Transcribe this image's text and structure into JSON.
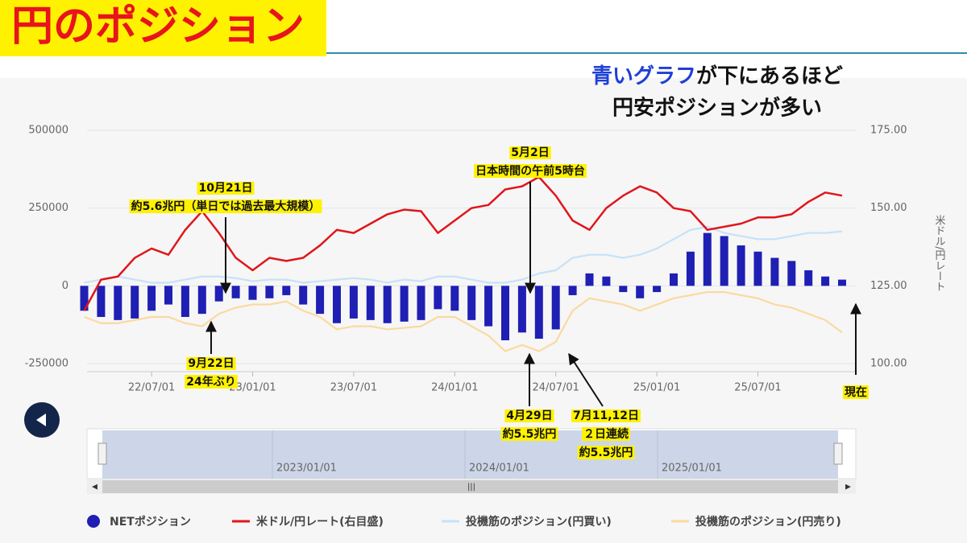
{
  "header": {
    "title": "円のポジション"
  },
  "subtitle": {
    "line1": [
      "青いグラフ",
      "が下にあるほど"
    ],
    "line2": "円安ポジションが多い"
  },
  "chart_data": {
    "type": "bar",
    "categories": [
      "22/03/01",
      "22/04/01",
      "22/05/01",
      "22/06/01",
      "22/07/01",
      "22/08/01",
      "22/09/01",
      "22/10/01",
      "22/11/01",
      "22/12/01",
      "23/01/01",
      "23/02/01",
      "23/03/01",
      "23/04/01",
      "23/05/01",
      "23/06/01",
      "23/07/01",
      "23/08/01",
      "23/09/01",
      "23/10/01",
      "23/11/01",
      "23/12/01",
      "24/01/01",
      "24/02/01",
      "24/03/01",
      "24/04/01",
      "24/05/01",
      "24/06/01",
      "24/07/01",
      "24/08/01",
      "24/09/01",
      "24/10/01",
      "24/11/01",
      "24/12/01",
      "25/01/01",
      "25/02/01",
      "25/03/01",
      "25/04/01",
      "25/05/01",
      "25/06/01",
      "25/07/01",
      "25/08/01",
      "25/09/01",
      "25/10/01",
      "25/11/01",
      "25/12/01"
    ],
    "series": [
      {
        "name": "NETポジション",
        "type": "bar",
        "color": "#1f1fb4",
        "values": [
          -80000,
          -100000,
          -110000,
          -105000,
          -80000,
          -60000,
          -100000,
          -90000,
          -50000,
          -40000,
          -45000,
          -40000,
          -30000,
          -60000,
          -90000,
          -120000,
          -105000,
          -110000,
          -120000,
          -115000,
          -110000,
          -75000,
          -80000,
          -110000,
          -130000,
          -175000,
          -150000,
          -170000,
          -140000,
          -30000,
          40000,
          30000,
          -20000,
          -40000,
          -20000,
          40000,
          110000,
          170000,
          160000,
          130000,
          110000,
          90000,
          80000,
          50000,
          30000,
          20000
        ]
      },
      {
        "name": "米ドル/円レート(右目盛)",
        "type": "line",
        "axis": "y2",
        "color": "#e0161b",
        "values": [
          117,
          127,
          128,
          134,
          137,
          135,
          143,
          149,
          142,
          134,
          130,
          134,
          133,
          134,
          138,
          143,
          142,
          145,
          148,
          149.5,
          149,
          142,
          146,
          150,
          151,
          156,
          157,
          160,
          154,
          146,
          143,
          150,
          154,
          157,
          155,
          150,
          149,
          143,
          144,
          145,
          147,
          147,
          148,
          152,
          155,
          154
        ]
      },
      {
        "name": "投機筋のポジション(円買い)",
        "type": "line",
        "color": "#c5e2f7",
        "values": [
          10000,
          20000,
          30000,
          20000,
          10000,
          10000,
          20000,
          30000,
          30000,
          25000,
          15000,
          20000,
          20000,
          10000,
          15000,
          20000,
          25000,
          20000,
          10000,
          20000,
          15000,
          30000,
          30000,
          20000,
          10000,
          10000,
          20000,
          40000,
          50000,
          90000,
          100000,
          100000,
          90000,
          100000,
          120000,
          150000,
          180000,
          190000,
          170000,
          160000,
          150000,
          150000,
          160000,
          170000,
          170000,
          175000
        ]
      },
      {
        "name": "投機筋のポジション(円売り)",
        "type": "line",
        "color": "#fbd9a0",
        "values": [
          -100000,
          -120000,
          -120000,
          -110000,
          -100000,
          -100000,
          -120000,
          -130000,
          -90000,
          -70000,
          -60000,
          -60000,
          -50000,
          -80000,
          -100000,
          -140000,
          -130000,
          -130000,
          -140000,
          -135000,
          -130000,
          -100000,
          -100000,
          -130000,
          -160000,
          -210000,
          -190000,
          -210000,
          -180000,
          -80000,
          -40000,
          -50000,
          -60000,
          -80000,
          -60000,
          -40000,
          -30000,
          -20000,
          -20000,
          -30000,
          -40000,
          -60000,
          -70000,
          -90000,
          -110000,
          -150000
        ]
      }
    ],
    "ylim": [
      -250000,
      500000
    ],
    "yticks": [
      -250000,
      0,
      250000,
      500000
    ],
    "y2lim": [
      100,
      175
    ],
    "y2ticks": [
      {
        "value": 100,
        "label": "100.00"
      },
      {
        "value": 125,
        "label": "125.00"
      },
      {
        "value": 150,
        "label": "150.00"
      },
      {
        "value": 175,
        "label": "175.00"
      }
    ],
    "y2label": "米ドル/円レート",
    "xticks": [
      "22/07/01",
      "23/01/01",
      "23/07/01",
      "24/01/01",
      "24/07/01",
      "25/01/01",
      "25/07/01"
    ],
    "grid": true,
    "annotations": [
      {
        "lines": [
          "10月21日",
          "約5.6兆円（単日では過去最大規模）"
        ]
      },
      {
        "lines": [
          "5月2日",
          "日本時間の午前5時台"
        ]
      },
      {
        "lines": [
          "9月22日",
          "24年ぶり"
        ]
      },
      {
        "lines": [
          "4月29日",
          "約5.5兆円"
        ]
      },
      {
        "lines": [
          "7月11,12日",
          "２日連続",
          "約5.5兆円"
        ]
      },
      {
        "lines": [
          "現在"
        ]
      }
    ],
    "navigator": {
      "labels": [
        "2023/01/01",
        "2024/01/01",
        "2025/01/01"
      ]
    }
  }
}
